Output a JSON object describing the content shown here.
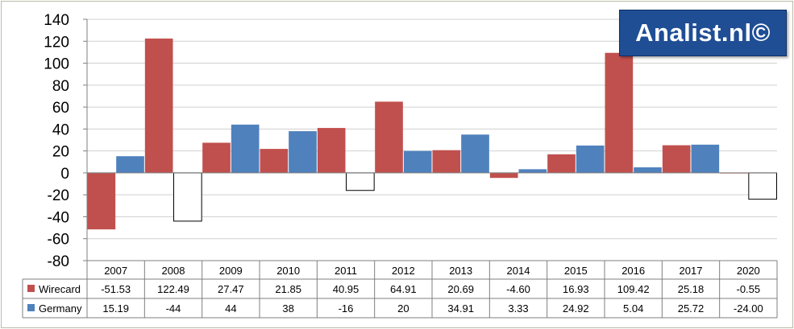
{
  "chart_data": {
    "type": "bar",
    "categories": [
      "2007",
      "2008",
      "2009",
      "2010",
      "2011",
      "2012",
      "2013",
      "2014",
      "2015",
      "2016",
      "2017",
      "2020"
    ],
    "series": [
      {
        "name": "Wirecard",
        "color": "#c0504d",
        "values": [
          -51.53,
          122.49,
          27.47,
          21.85,
          40.95,
          64.91,
          20.69,
          -4.6,
          16.93,
          109.42,
          25.18,
          -0.55
        ],
        "table_values": [
          "-51.53",
          "122.49",
          "27.47",
          "21.85",
          "40.95",
          "64.91",
          "20.69",
          "-4.60",
          "16.93",
          "109.42",
          "25.18",
          "-0.55"
        ]
      },
      {
        "name": "Germany",
        "color": "#4f81bd",
        "negative_fill": "#ffffff",
        "values": [
          15.19,
          -44,
          44,
          38,
          -16,
          20,
          34.91,
          3.33,
          24.92,
          5.04,
          25.72,
          -24.0
        ],
        "table_values": [
          "15.19",
          "-44",
          "44",
          "38",
          "-16",
          "20",
          "34.91",
          "3.33",
          "24.92",
          "5.04",
          "25.72",
          "-24.00"
        ]
      }
    ],
    "ylim": [
      -80,
      140
    ],
    "yticks": [
      "140",
      "120",
      "100",
      "80",
      "60",
      "40",
      "20",
      "0",
      "-20",
      "-40",
      "-60",
      "-80"
    ],
    "ytick_step": 20,
    "grid": true,
    "legend": "data-table"
  },
  "logo": {
    "text": "Analist.nl©"
  }
}
